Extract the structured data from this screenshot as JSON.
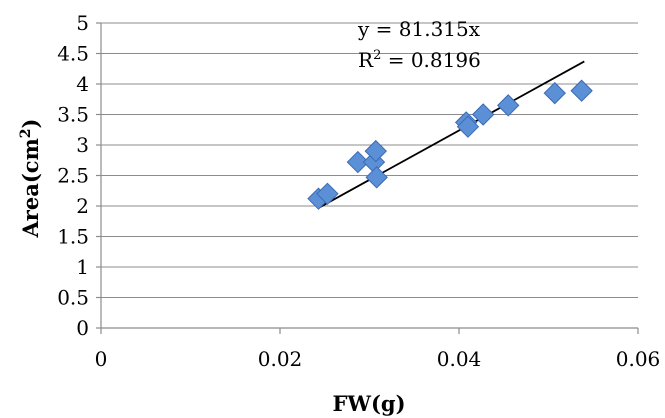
{
  "chart_data": {
    "type": "scatter",
    "title": "",
    "xlabel": "FW(g)",
    "ylabel_text": "Area(cm",
    "ylabel_sup": "2",
    "ylabel_close": ")",
    "xlim": [
      0,
      0.06
    ],
    "ylim": [
      0,
      5
    ],
    "xticks": [
      "0",
      "0.02",
      "0.04",
      "0.06"
    ],
    "yticks": [
      "0",
      "0.5",
      "1",
      "1.5",
      "2",
      "2.5",
      "3",
      "3.5",
      "4",
      "4.5",
      "5"
    ],
    "grid": "horizontal",
    "legend": "none",
    "marker": "diamond",
    "marker_color": "#5b8fd6",
    "marker_stroke": "#3c6ab5",
    "trendline_color": "#000000",
    "points": [
      {
        "x": 0.0243,
        "y": 2.12
      },
      {
        "x": 0.0253,
        "y": 2.2
      },
      {
        "x": 0.0287,
        "y": 2.72
      },
      {
        "x": 0.0305,
        "y": 2.72
      },
      {
        "x": 0.0307,
        "y": 2.9
      },
      {
        "x": 0.0308,
        "y": 2.47
      },
      {
        "x": 0.0408,
        "y": 3.37
      },
      {
        "x": 0.041,
        "y": 3.3
      },
      {
        "x": 0.0427,
        "y": 3.5
      },
      {
        "x": 0.0455,
        "y": 3.65
      },
      {
        "x": 0.0507,
        "y": 3.85
      },
      {
        "x": 0.0537,
        "y": 3.89
      }
    ],
    "trendline": {
      "x": [
        0.0242,
        0.054
      ],
      "y": [
        1.96,
        4.37
      ]
    },
    "annotation": {
      "equation": "y = 81.315x",
      "r2_prefix": "R",
      "r2_sup": "2",
      "r2_value": " = 0.8196"
    }
  }
}
